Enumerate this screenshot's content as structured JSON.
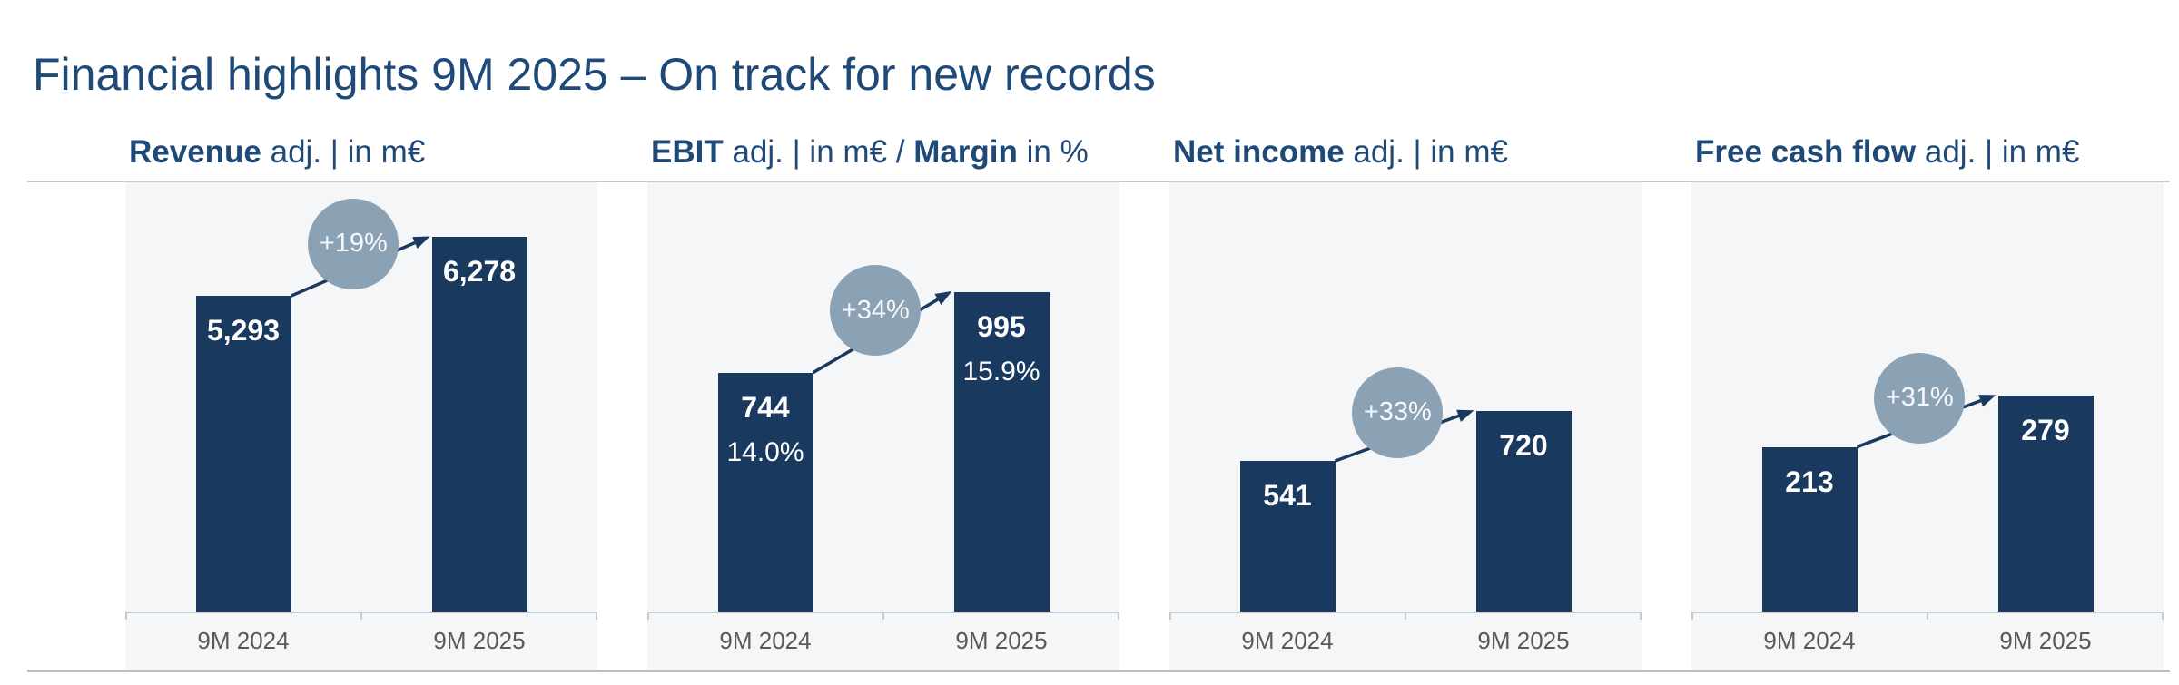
{
  "page_title": "Financial highlights 9M 2025 – On track for new records",
  "colors": {
    "title_text": "#1f4a78",
    "header_text": "#1f4a78",
    "bar": "#1a395e",
    "badge": "#8ba1b4",
    "badge_text": "#f6f8fa",
    "value_text": "#ffffff",
    "axis_label": "#595959",
    "rule": "#b9bfc6",
    "panel_bg": "#f5f6f8"
  },
  "chart_data": [
    {
      "type": "bar",
      "title": "Revenue adj. | in m€",
      "header": {
        "bold": "Revenue",
        "rest": " adj. | in m€",
        "bold2": "",
        "rest2": ""
      },
      "categories": [
        "9M 2024",
        "9M 2025"
      ],
      "values": [
        5293,
        6278
      ],
      "value_labels": [
        "5,293",
        "6,278"
      ],
      "delta_label": "+19%",
      "ylim": [
        0,
        7000
      ],
      "grid": false,
      "legend": false
    },
    {
      "type": "bar",
      "title": "EBIT adj. | in m€ / Margin in %",
      "header": {
        "bold": "EBIT",
        "rest": " adj. | in m€ / ",
        "bold2": "Margin",
        "rest2": " in %"
      },
      "categories": [
        "9M 2024",
        "9M 2025"
      ],
      "values": [
        744,
        995
      ],
      "value_labels": [
        "744",
        "995"
      ],
      "margin_labels": [
        "14.0%",
        "15.9%"
      ],
      "delta_label": "+34%",
      "ylim": [
        0,
        1300
      ],
      "grid": false,
      "legend": false
    },
    {
      "type": "bar",
      "title": "Net income adj. | in m€",
      "header": {
        "bold": "Net income",
        "rest": " adj. | in m€",
        "bold2": "",
        "rest2": ""
      },
      "categories": [
        "9M 2024",
        "9M 2025"
      ],
      "values": [
        541,
        720
      ],
      "value_labels": [
        "541",
        "720"
      ],
      "delta_label": "+33%",
      "ylim": [
        0,
        1500
      ],
      "grid": false,
      "legend": false
    },
    {
      "type": "bar",
      "title": "Free cash flow adj. | in m€",
      "header": {
        "bold": "Free cash flow",
        "rest": " adj. | in m€",
        "bold2": "",
        "rest2": ""
      },
      "categories": [
        "9M 2024",
        "9M 2025"
      ],
      "values": [
        213,
        279
      ],
      "value_labels": [
        "213",
        "279"
      ],
      "delta_label": "+31%",
      "ylim": [
        0,
        540
      ],
      "grid": false,
      "legend": false
    }
  ]
}
